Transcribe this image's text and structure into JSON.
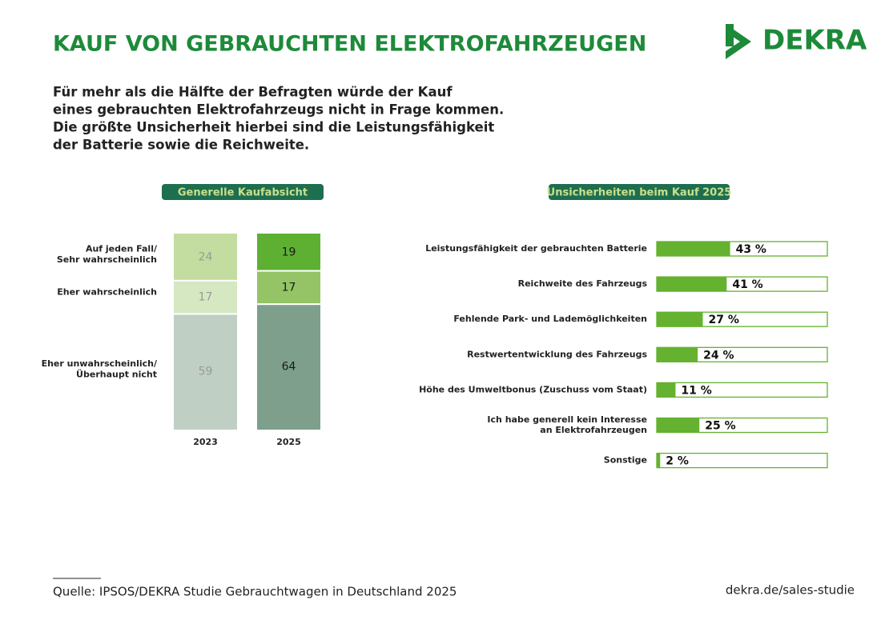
{
  "title": "KAUF VON GEBRAUCHTEN ELEKTROFAHRZEUGEN",
  "logo": "DEKRA",
  "subtitle": [
    "Für mehr als die Hälfte der Befragten würde der Kauf",
    "eines gebrauchten Elektrofahrzeugs nicht in Frage kommen.",
    "Die größte Unsicherheit hierbei sind die Leistungsfähigkeit",
    "der Batterie sowie die Reichweite."
  ],
  "source": "Quelle: IPSOS/DEKRA Studie Gebrauchtwagen in Deutschland 2025",
  "url": "dekra.de/sales-studie",
  "chart_data": [
    {
      "type": "stacked_bar",
      "title": "Generelle Kaufabsicht",
      "categories": [
        "2023",
        "2025"
      ],
      "label_colors": [
        "#9a9a9a",
        "#1a1a1a"
      ],
      "series": [
        {
          "name": "Auf jeden Fall/\nSehr wahrscheinlich",
          "colors": [
            "#c2dd9f",
            "#5eb032"
          ],
          "values": [
            24,
            19
          ]
        },
        {
          "name": "Eher wahrscheinlich",
          "colors": [
            "#d6e8c2",
            "#94c465"
          ],
          "values": [
            17,
            17
          ]
        },
        {
          "name": "Eher unwahrscheinlich/\nÜberhaupt nicht",
          "colors": [
            "#c0cfc4",
            "#7d9f8c"
          ],
          "values": [
            59,
            64
          ]
        }
      ]
    },
    {
      "type": "hbar",
      "title": "Unsicherheiten beim Kauf 2025",
      "categories": [
        "Leistungsfähigkeit der gebrauchten Batterie",
        "Reichweite des Fahrzeugs",
        "Fehlende Park- und Lademöglichkeiten",
        "Restwertentwicklung des Fahrzeugs",
        "Höhe des Umweltbonus (Zuschuss vom Staat)",
        "Ich habe generell kein Interesse\nan Elektrofahrzeugen",
        "Sonstige"
      ],
      "values": [
        43,
        41,
        27,
        24,
        11,
        25,
        2
      ],
      "value_labels": [
        "43 %",
        "41 %",
        "27 %",
        "24 %",
        "11 %",
        "25 %",
        "2 %"
      ],
      "xlim": [
        0,
        100
      ],
      "color": "#64b22f"
    }
  ]
}
